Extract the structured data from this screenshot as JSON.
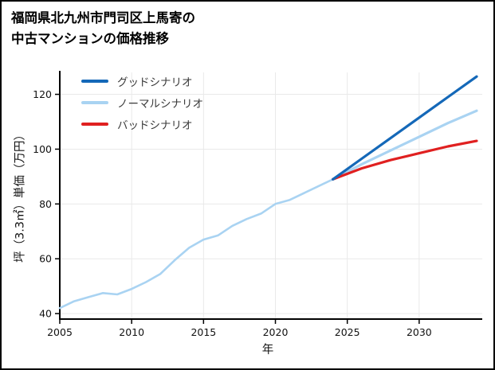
{
  "page": {
    "title_line1": "福岡県北九州市門司区上馬寄の",
    "title_line2": "中古マンションの価格推移"
  },
  "chart_data": {
    "type": "line",
    "title": "福岡県北九州市門司区上馬寄の中古マンションの価格推移",
    "xlabel": "年",
    "ylabel": "坪（3.3㎡）単価（万円）",
    "xlim": [
      2005,
      2034
    ],
    "ylim": [
      38,
      128
    ],
    "xticks": [
      2005,
      2010,
      2015,
      2020,
      2025,
      2030
    ],
    "yticks": [
      40,
      60,
      80,
      100,
      120
    ],
    "grid": true,
    "legend_position": "upper-left",
    "history": {
      "color": "#a9d3f2",
      "x": [
        2005,
        2006,
        2007,
        2008,
        2009,
        2010,
        2011,
        2012,
        2013,
        2014,
        2015,
        2016,
        2017,
        2018,
        2019,
        2020,
        2021,
        2022,
        2023,
        2024
      ],
      "values": [
        42,
        44.5,
        46,
        47.5,
        47,
        49,
        51.5,
        54.5,
        59.5,
        64,
        67,
        68.5,
        72,
        74.5,
        76.5,
        80,
        81.5,
        84,
        86.5,
        89
      ]
    },
    "scenarios": [
      {
        "name": "グッドシナリオ",
        "color": "#1468b8",
        "x": [
          2024,
          2026,
          2028,
          2030,
          2032,
          2034
        ],
        "values": [
          89,
          96.5,
          104,
          111.5,
          119,
          126.5
        ]
      },
      {
        "name": "ノーマルシナリオ",
        "color": "#a9d3f2",
        "x": [
          2024,
          2026,
          2028,
          2030,
          2032,
          2034
        ],
        "values": [
          89,
          94.5,
          99.5,
          104.5,
          109.5,
          114
        ]
      },
      {
        "name": "バッドシナリオ",
        "color": "#e02020",
        "x": [
          2024,
          2026,
          2028,
          2030,
          2032,
          2034
        ],
        "values": [
          89,
          93,
          96,
          98.5,
          101,
          103
        ]
      }
    ],
    "axis_color": "#000000",
    "grid_color": "#e9e9e9",
    "tick_label_color": "#111111"
  }
}
